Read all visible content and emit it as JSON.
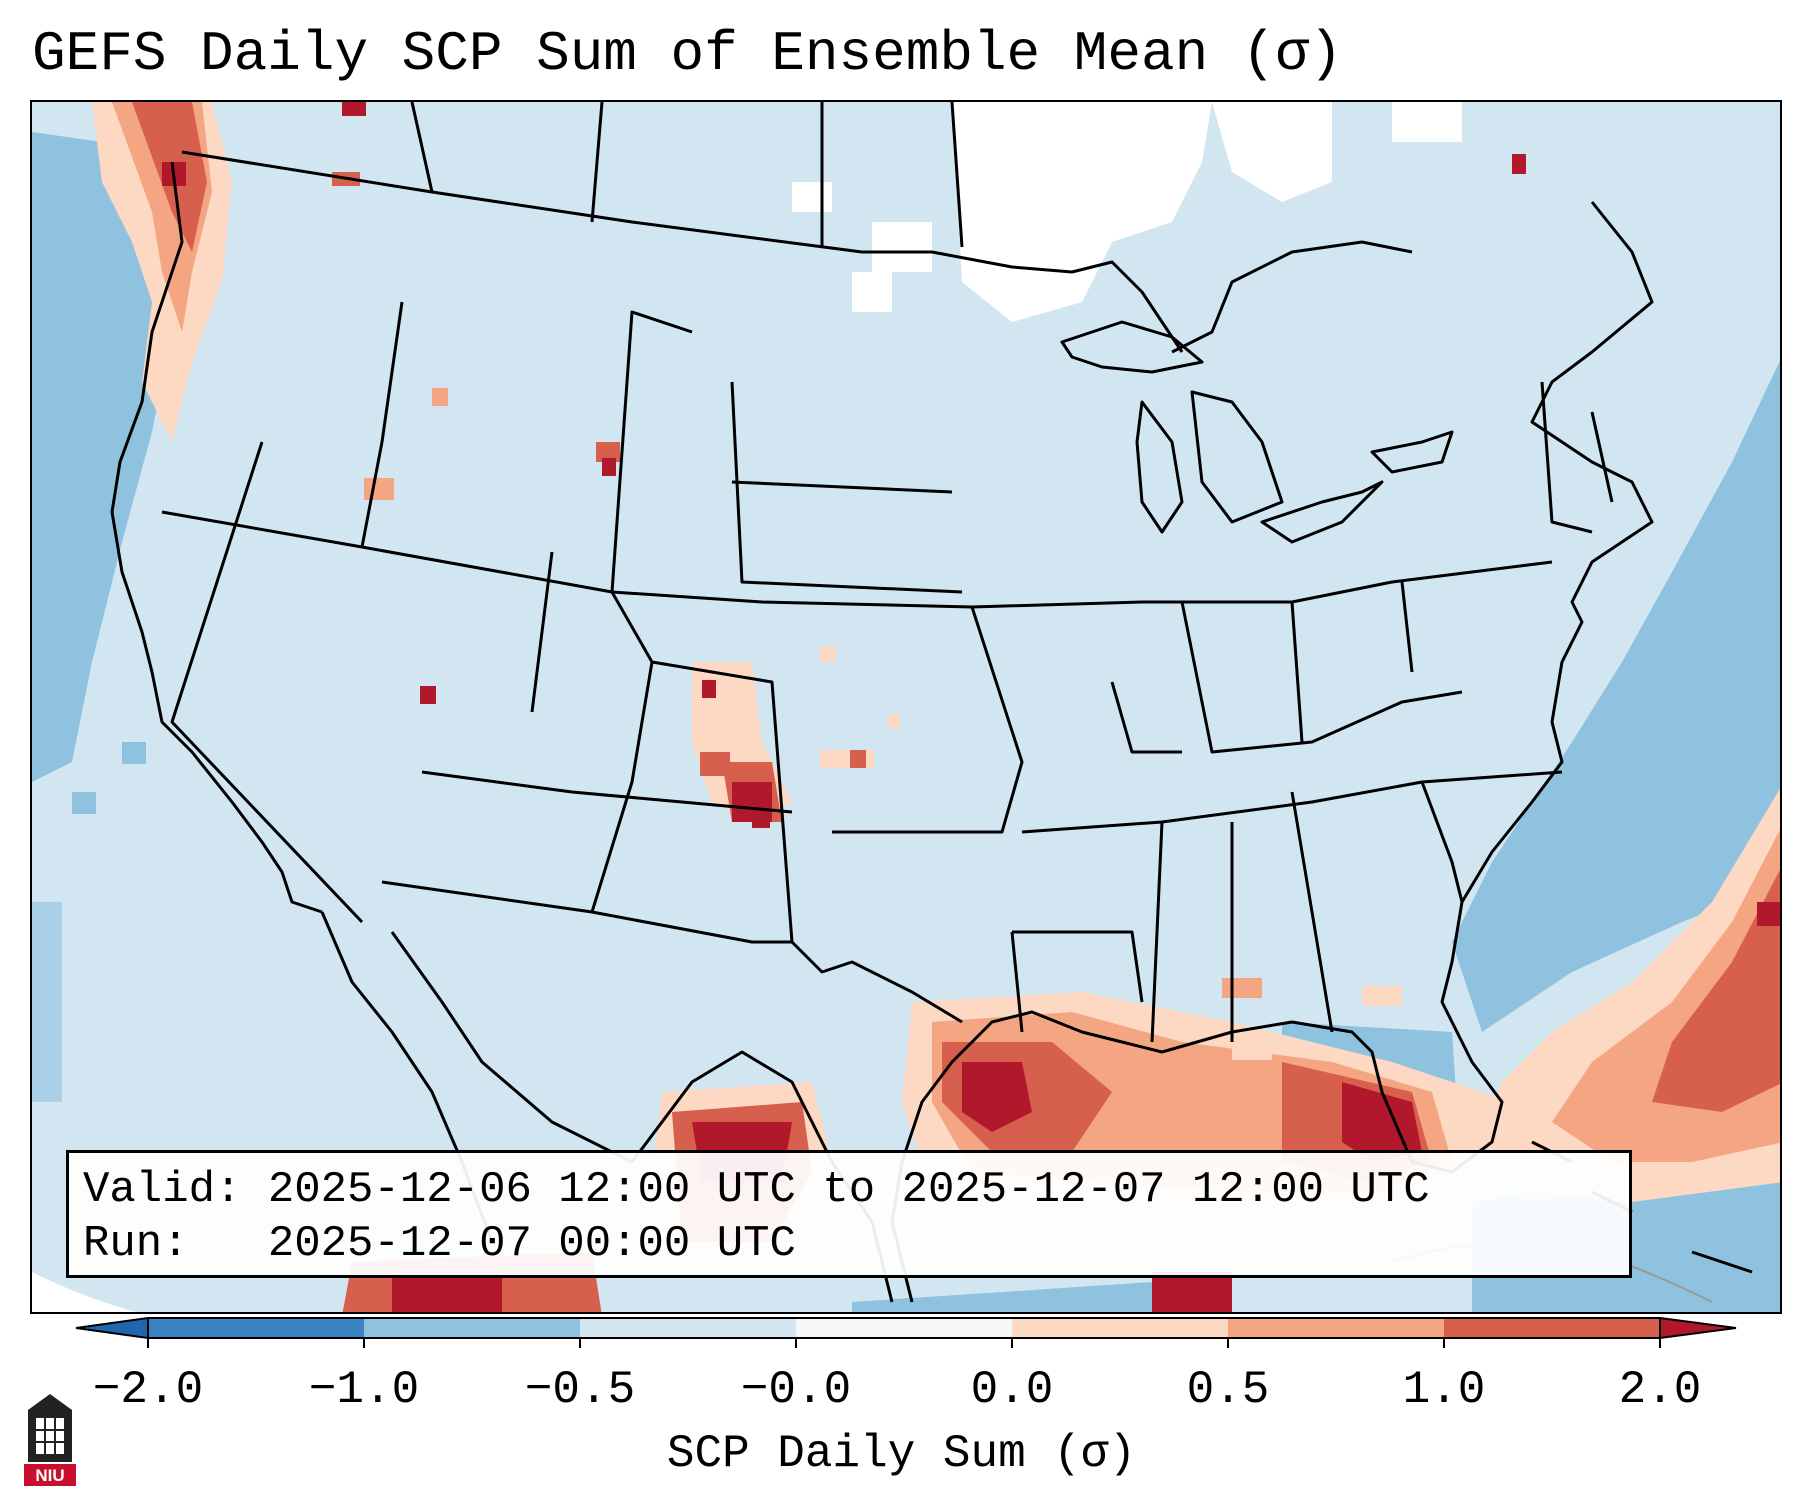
{
  "title": "GEFS Daily SCP Sum of Ensemble Mean (σ)",
  "info": {
    "valid_label": "Valid:",
    "valid_value": "2025-12-06 12:00 UTC to 2025-12-07 12:00 UTC",
    "run_label": "Run:",
    "run_value": "2025-12-07 00:00 UTC"
  },
  "colorbar": {
    "label": "SCP Daily Sum (σ)",
    "ticks": [
      "−2.0",
      "−1.0",
      "−0.5",
      "−0.0",
      "0.0",
      "0.5",
      "1.0",
      "2.0"
    ],
    "colors": [
      "#3b83c0",
      "#8fc2df",
      "#d2e6f2",
      "#f7f7f7",
      "#fdd9c4",
      "#f4a582",
      "#d6604d",
      "#b2182b"
    ],
    "extend": "both"
  },
  "map_colors": {
    "ocean_land_base": "#d2e6f2",
    "no_data": "#ffffff",
    "border": "#000000"
  },
  "logo": {
    "text": "NIU",
    "brand_color": "#c8102e"
  }
}
